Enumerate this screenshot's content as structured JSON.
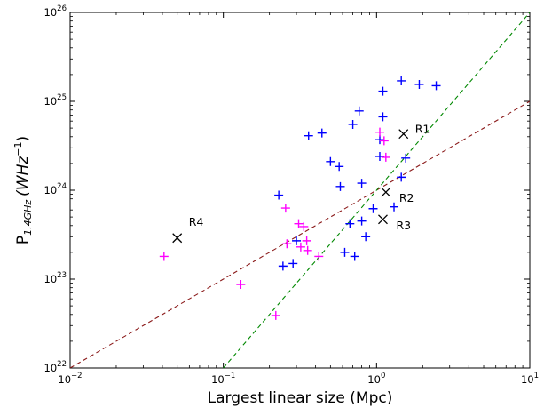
{
  "chart_data": {
    "type": "scatter",
    "xscale": "log",
    "yscale": "log",
    "xlim": [
      0.01,
      10
    ],
    "ylim": [
      1e+22,
      1e+26
    ],
    "xlabel": "Largest linear size (Mpc)",
    "ylabel_main": "P",
    "ylabel_sub": "1.4GHz",
    "ylabel_unit": "(WHz",
    "ylabel_exp": "−1",
    "ylabel_close": ")",
    "x_ticks": [
      {
        "value": 0.01,
        "base": "10",
        "exp": "−2"
      },
      {
        "value": 0.1,
        "base": "10",
        "exp": "−1"
      },
      {
        "value": 1,
        "base": "10",
        "exp": "0"
      },
      {
        "value": 10,
        "base": "10",
        "exp": "1"
      }
    ],
    "y_ticks": [
      {
        "value": 1e+22,
        "base": "10",
        "exp": "22"
      },
      {
        "value": 1e+23,
        "base": "10",
        "exp": "23"
      },
      {
        "value": 1e+24,
        "base": "10",
        "exp": "24"
      },
      {
        "value": 1e+25,
        "base": "10",
        "exp": "25"
      },
      {
        "value": 1e+26,
        "base": "10",
        "exp": "26"
      }
    ],
    "series": [
      {
        "color": "#0000ff",
        "marker": "plus",
        "points": [
          [
            0.23,
            8.8e+23
          ],
          [
            0.245,
            1.4e+23
          ],
          [
            0.285,
            1.5e+23
          ],
          [
            0.3,
            2.7e+23
          ],
          [
            0.36,
            4.1e+24
          ],
          [
            0.44,
            4.4e+24
          ],
          [
            0.5,
            2.1e+24
          ],
          [
            0.57,
            1.85e+24
          ],
          [
            0.58,
            1.1e+24
          ],
          [
            0.62,
            2e+23
          ],
          [
            0.67,
            4.2e+23
          ],
          [
            0.7,
            5.5e+24
          ],
          [
            0.72,
            1.8e+23
          ],
          [
            0.77,
            7.8e+24
          ],
          [
            0.8,
            1.2e+24
          ],
          [
            0.8,
            4.5e+23
          ],
          [
            0.85,
            3e+23
          ],
          [
            0.95,
            6.2e+23
          ],
          [
            1.05,
            3.7e+24
          ],
          [
            1.05,
            2.4e+24
          ],
          [
            1.1,
            1.3e+25
          ],
          [
            1.1,
            6.7e+24
          ],
          [
            1.3,
            6.5e+23
          ],
          [
            1.45,
            1.7e+25
          ],
          [
            1.45,
            1.4e+24
          ],
          [
            1.55,
            2.3e+24
          ],
          [
            1.9,
            1.55e+25
          ],
          [
            2.45,
            1.5e+25
          ]
        ]
      },
      {
        "color": "#ff00ff",
        "marker": "plus",
        "points": [
          [
            0.041,
            1.8e+23
          ],
          [
            0.13,
            8.7e+22
          ],
          [
            0.22,
            3.9e+22
          ],
          [
            0.255,
            6.3e+23
          ],
          [
            0.26,
            2.5e+23
          ],
          [
            0.31,
            4.2e+23
          ],
          [
            0.32,
            2.3e+23
          ],
          [
            0.335,
            3.9e+23
          ],
          [
            0.35,
            2.7e+23
          ],
          [
            0.355,
            2.1e+23
          ],
          [
            0.42,
            1.8e+23
          ],
          [
            1.05,
            4.5e+24
          ],
          [
            1.12,
            3.6e+24
          ],
          [
            1.15,
            2.35e+24
          ]
        ]
      }
    ],
    "annotations": [
      {
        "label": "R1",
        "x": 1.5,
        "y": 4.3e+24
      },
      {
        "label": "R2",
        "x": 1.15,
        "y": 9.5e+23
      },
      {
        "label": "R3",
        "x": 1.1,
        "y": 4.7e+23
      },
      {
        "label": "R4",
        "x": 0.05,
        "y": 2.9e+23
      }
    ],
    "lines": [
      {
        "style": "dashed",
        "color": "#8b1a1a",
        "from": [
          0.01,
          1e+22
        ],
        "to": [
          10,
          1e+25
        ]
      },
      {
        "style": "dashed",
        "color": "#008800",
        "from": [
          0.1,
          1e+22
        ],
        "to": [
          10,
          1e+26
        ]
      }
    ]
  }
}
